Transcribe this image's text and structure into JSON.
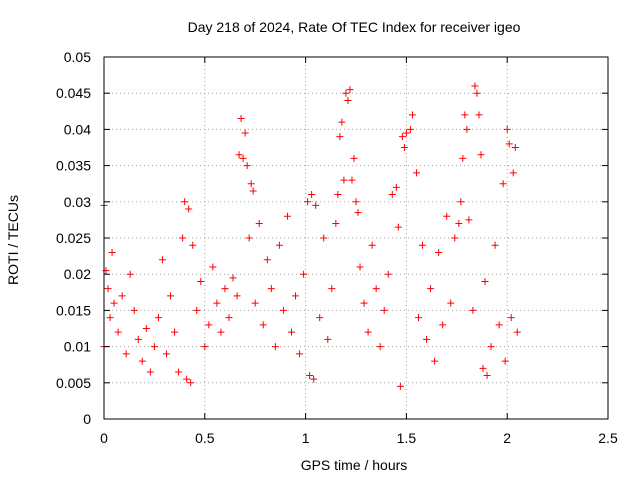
{
  "chart_data": {
    "type": "scatter",
    "title": "Day 218 of 2024, Rate Of TEC Index for receiver igeo",
    "xlabel": "GPS time / hours",
    "ylabel": "ROTI / TECUs",
    "xlim": [
      0,
      2.5
    ],
    "ylim": [
      0,
      0.05
    ],
    "grid": true,
    "marker": "+",
    "color": "#ff0000",
    "x_ticks": [
      0,
      0.5,
      1,
      1.5,
      2,
      2.5
    ],
    "x_tick_labels": [
      "0",
      "0.5",
      "1",
      "1.5",
      "2",
      "2.5"
    ],
    "y_ticks": [
      0,
      0.005,
      0.01,
      0.015,
      0.02,
      0.025,
      0.03,
      0.035,
      0.04,
      0.045,
      0.05
    ],
    "y_tick_labels": [
      "0",
      "0.005",
      "0.01",
      "0.015",
      "0.02",
      "0.025",
      "0.03",
      "0.035",
      "0.04",
      "0.045",
      "0.05"
    ],
    "series": [
      {
        "name": "ROTI",
        "points": [
          [
            0.0,
            0.0295
          ],
          [
            0.0,
            0.01
          ],
          [
            0.01,
            0.0205
          ],
          [
            0.02,
            0.018
          ],
          [
            0.03,
            0.014
          ],
          [
            0.04,
            0.023
          ],
          [
            0.05,
            0.016
          ],
          [
            0.07,
            0.012
          ],
          [
            0.09,
            0.017
          ],
          [
            0.11,
            0.009
          ],
          [
            0.13,
            0.02
          ],
          [
            0.15,
            0.015
          ],
          [
            0.17,
            0.011
          ],
          [
            0.19,
            0.008
          ],
          [
            0.21,
            0.0125
          ],
          [
            0.23,
            0.0065
          ],
          [
            0.25,
            0.01
          ],
          [
            0.27,
            0.014
          ],
          [
            0.29,
            0.022
          ],
          [
            0.31,
            0.009
          ],
          [
            0.33,
            0.017
          ],
          [
            0.35,
            0.012
          ],
          [
            0.37,
            0.0065
          ],
          [
            0.39,
            0.025
          ],
          [
            0.4,
            0.03
          ],
          [
            0.41,
            0.0055
          ],
          [
            0.42,
            0.029
          ],
          [
            0.43,
            0.005
          ],
          [
            0.44,
            0.024
          ],
          [
            0.46,
            0.015
          ],
          [
            0.48,
            0.019
          ],
          [
            0.5,
            0.01
          ],
          [
            0.52,
            0.013
          ],
          [
            0.54,
            0.021
          ],
          [
            0.56,
            0.016
          ],
          [
            0.58,
            0.012
          ],
          [
            0.6,
            0.018
          ],
          [
            0.62,
            0.014
          ],
          [
            0.64,
            0.0195
          ],
          [
            0.66,
            0.017
          ],
          [
            0.67,
            0.0365
          ],
          [
            0.68,
            0.0415
          ],
          [
            0.69,
            0.036
          ],
          [
            0.7,
            0.0395
          ],
          [
            0.71,
            0.035
          ],
          [
            0.72,
            0.025
          ],
          [
            0.73,
            0.0325
          ],
          [
            0.74,
            0.0315
          ],
          [
            0.75,
            0.016
          ],
          [
            0.77,
            0.027
          ],
          [
            0.79,
            0.013
          ],
          [
            0.81,
            0.022
          ],
          [
            0.83,
            0.018
          ],
          [
            0.85,
            0.01
          ],
          [
            0.87,
            0.024
          ],
          [
            0.89,
            0.015
          ],
          [
            0.91,
            0.028
          ],
          [
            0.93,
            0.012
          ],
          [
            0.95,
            0.017
          ],
          [
            0.97,
            0.009
          ],
          [
            0.99,
            0.02
          ],
          [
            1.01,
            0.03
          ],
          [
            1.02,
            0.006
          ],
          [
            1.03,
            0.031
          ],
          [
            1.04,
            0.0055
          ],
          [
            1.05,
            0.0295
          ],
          [
            1.07,
            0.014
          ],
          [
            1.09,
            0.025
          ],
          [
            1.11,
            0.011
          ],
          [
            1.13,
            0.018
          ],
          [
            1.15,
            0.027
          ],
          [
            1.16,
            0.031
          ],
          [
            1.17,
            0.039
          ],
          [
            1.18,
            0.041
          ],
          [
            1.19,
            0.033
          ],
          [
            1.2,
            0.045
          ],
          [
            1.21,
            0.044
          ],
          [
            1.22,
            0.0455
          ],
          [
            1.23,
            0.033
          ],
          [
            1.24,
            0.036
          ],
          [
            1.25,
            0.03
          ],
          [
            1.26,
            0.0285
          ],
          [
            1.27,
            0.021
          ],
          [
            1.29,
            0.016
          ],
          [
            1.31,
            0.012
          ],
          [
            1.33,
            0.024
          ],
          [
            1.35,
            0.018
          ],
          [
            1.37,
            0.01
          ],
          [
            1.39,
            0.015
          ],
          [
            1.41,
            0.02
          ],
          [
            1.43,
            0.031
          ],
          [
            1.45,
            0.032
          ],
          [
            1.46,
            0.0265
          ],
          [
            1.47,
            0.0045
          ],
          [
            1.48,
            0.039
          ],
          [
            1.49,
            0.0375
          ],
          [
            1.5,
            0.0395
          ],
          [
            1.52,
            0.04
          ],
          [
            1.53,
            0.042
          ],
          [
            1.55,
            0.034
          ],
          [
            1.56,
            0.014
          ],
          [
            1.58,
            0.024
          ],
          [
            1.6,
            0.011
          ],
          [
            1.62,
            0.018
          ],
          [
            1.64,
            0.008
          ],
          [
            1.66,
            0.023
          ],
          [
            1.68,
            0.013
          ],
          [
            1.7,
            0.028
          ],
          [
            1.72,
            0.016
          ],
          [
            1.74,
            0.025
          ],
          [
            1.76,
            0.027
          ],
          [
            1.77,
            0.03
          ],
          [
            1.78,
            0.036
          ],
          [
            1.79,
            0.042
          ],
          [
            1.8,
            0.04
          ],
          [
            1.81,
            0.0275
          ],
          [
            1.83,
            0.015
          ],
          [
            1.84,
            0.046
          ],
          [
            1.85,
            0.045
          ],
          [
            1.86,
            0.042
          ],
          [
            1.87,
            0.0365
          ],
          [
            1.88,
            0.007
          ],
          [
            1.89,
            0.019
          ],
          [
            1.9,
            0.006
          ],
          [
            1.92,
            0.01
          ],
          [
            1.94,
            0.024
          ],
          [
            1.96,
            0.013
          ],
          [
            1.98,
            0.0325
          ],
          [
            1.99,
            0.008
          ],
          [
            2.0,
            0.04
          ],
          [
            2.01,
            0.038
          ],
          [
            2.02,
            0.014
          ],
          [
            2.03,
            0.034
          ],
          [
            2.04,
            0.0375
          ],
          [
            2.05,
            0.012
          ]
        ]
      }
    ]
  }
}
